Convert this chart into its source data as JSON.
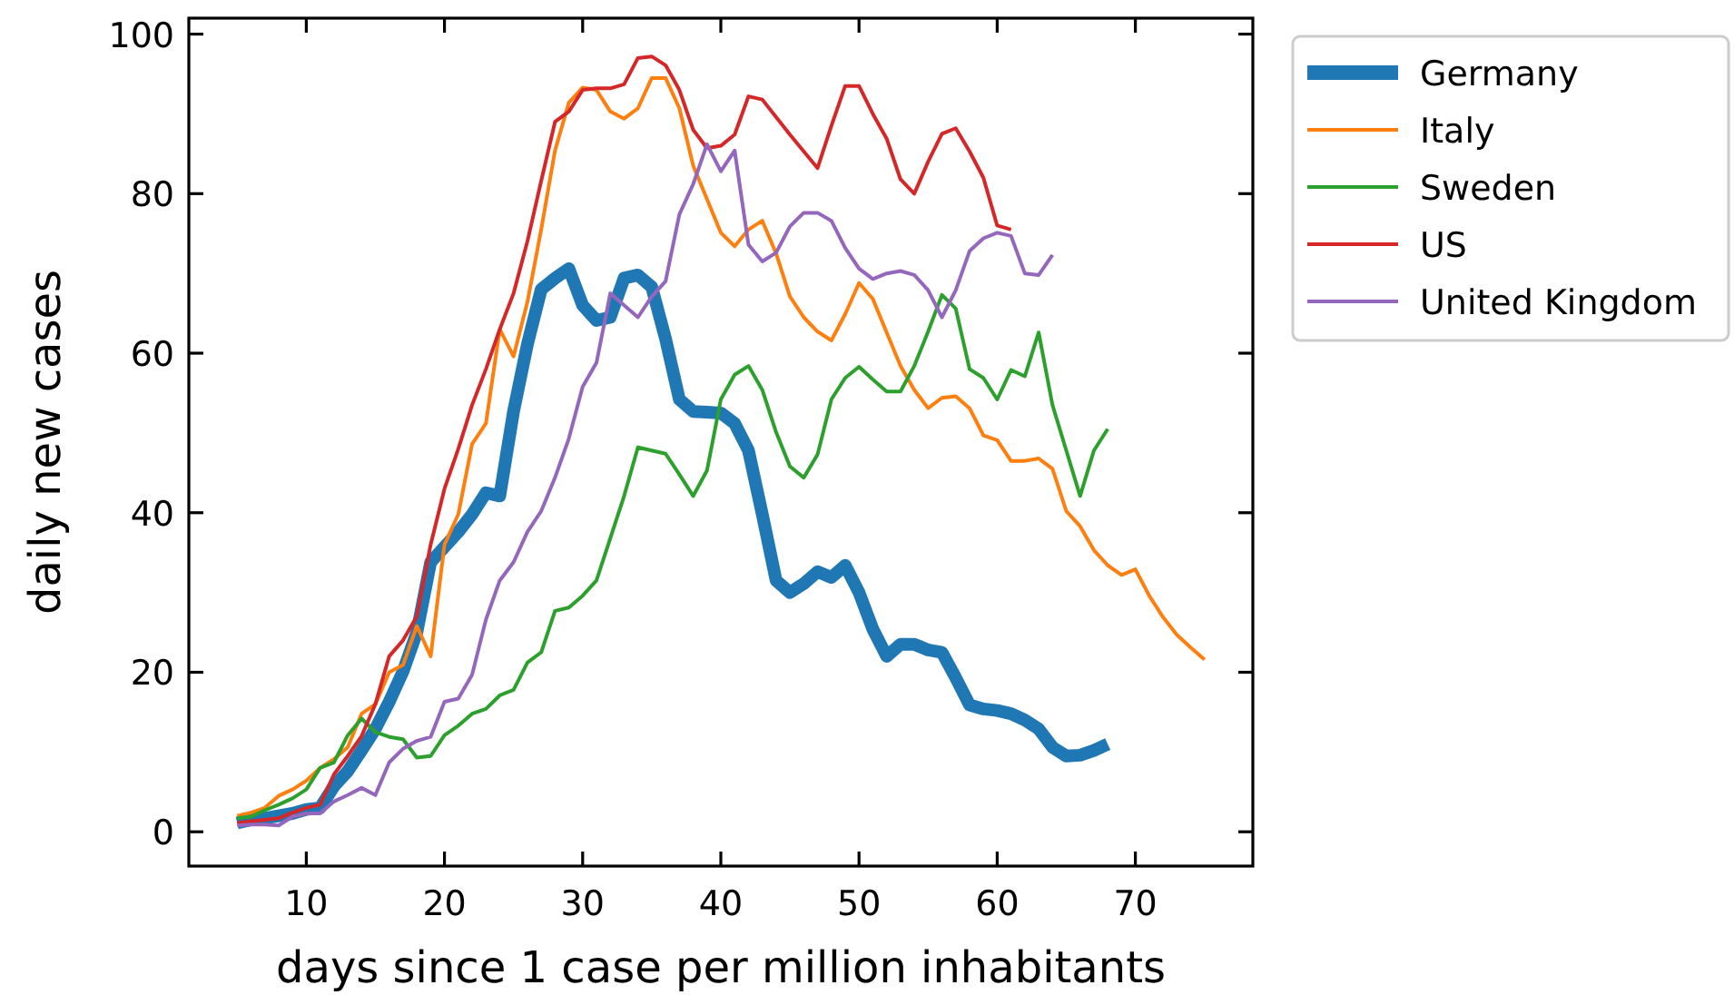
{
  "chart_data": {
    "type": "line",
    "xlabel": "days since 1 case per million inhabitants",
    "ylabel": "daily new cases",
    "xlim": [
      1.5,
      78.5
    ],
    "xticks": [
      10,
      20,
      30,
      40,
      50,
      60,
      70
    ],
    "ylim": [
      -4.3,
      102
    ],
    "yticks": [
      0,
      20,
      40,
      60,
      80,
      100
    ],
    "x": [
      5,
      6,
      7,
      8,
      9,
      10,
      11,
      12,
      13,
      14,
      15,
      16,
      17,
      18,
      19,
      20,
      21,
      22,
      23,
      24,
      25,
      26,
      27,
      28,
      29,
      30,
      31,
      32,
      33,
      34,
      35,
      36,
      37,
      38,
      39,
      40,
      41,
      42,
      43,
      44,
      45,
      46,
      47,
      48,
      49,
      50,
      51,
      52,
      53,
      54,
      55,
      56,
      57,
      58,
      59,
      60,
      61,
      62,
      63,
      64,
      65,
      66,
      67,
      68,
      69,
      70,
      71,
      72,
      73,
      74,
      75
    ],
    "legend": "right",
    "grid": false,
    "marker": "none",
    "line_style": "solid",
    "series": [
      {
        "name": "Germany",
        "color": "#1f77b4",
        "values": [
          1.1,
          1.5,
          1.7,
          2,
          2.3,
          2.8,
          3,
          5.7,
          7.6,
          10.2,
          12.9,
          16.3,
          20.1,
          25,
          33.8,
          35.7,
          37.6,
          39.8,
          42.5,
          42.1,
          52.7,
          61.1,
          68,
          69.4,
          70.6,
          66,
          64.1,
          64.5,
          69.4,
          69.8,
          68.3,
          61.8,
          54.2,
          52.7,
          52.6,
          52.5,
          51.2,
          47.8,
          39.8,
          31.5,
          30,
          31.1,
          32.6,
          31.9,
          33.4,
          30,
          25.4,
          22,
          23.5,
          23.5,
          22.8,
          22.5,
          19.3,
          15.9,
          15.4,
          15.2,
          14.8,
          14,
          12.9,
          10.6,
          9.5,
          9.6,
          10.2,
          11,
          null,
          null,
          null,
          null,
          null,
          null,
          null
        ]
      },
      {
        "name": "Italy",
        "color": "#ff7f0e",
        "values": [
          2,
          2.4,
          3,
          4.5,
          5.3,
          6.4,
          8,
          9.1,
          10.6,
          14.8,
          16,
          20,
          20.9,
          25.8,
          22,
          36,
          39.8,
          48.6,
          51.2,
          63,
          59.6,
          66.4,
          75.5,
          85.4,
          91.4,
          93.3,
          93,
          90.3,
          89.4,
          90.7,
          94.5,
          94.5,
          90.7,
          83.5,
          79.3,
          75.1,
          73.4,
          75.5,
          76.6,
          72.5,
          67.1,
          64.5,
          62.7,
          61.6,
          64.9,
          68.8,
          66.8,
          62.6,
          58.4,
          55.4,
          53.1,
          54.4,
          54.6,
          53.1,
          49.7,
          49.1,
          46.5,
          46.5,
          46.8,
          45.5,
          40.2,
          38.3,
          35.3,
          33.4,
          32.2,
          32.9,
          29.6,
          26.9,
          24.7,
          23.1,
          21.6
        ]
      },
      {
        "name": "Sweden",
        "color": "#2ca02c",
        "values": [
          1.7,
          1.9,
          2.7,
          3.4,
          4.2,
          5.3,
          8,
          8.7,
          12.1,
          14.2,
          12.5,
          11.9,
          11.6,
          9.3,
          9.5,
          12.1,
          13.3,
          14.8,
          15.4,
          17.1,
          17.8,
          21.2,
          22.5,
          27.7,
          28.1,
          29.6,
          31.5,
          36.8,
          42.1,
          48.2,
          47.8,
          47.4,
          44.8,
          42.1,
          45.3,
          54.2,
          57.3,
          58.4,
          55.4,
          50.1,
          45.8,
          44.4,
          47.3,
          54.2,
          56.9,
          58.3,
          56.7,
          55.2,
          55.2,
          58.4,
          62.7,
          67.3,
          65.6,
          58,
          56.9,
          54.2,
          57.9,
          57.1,
          62.6,
          53.5,
          47.8,
          42.1,
          47.8,
          50.5,
          null,
          null,
          null,
          null,
          null,
          null,
          null
        ]
      },
      {
        "name": "US",
        "color": "#d62728",
        "values": [
          1.1,
          1.3,
          1.5,
          1.7,
          2.4,
          3,
          3.4,
          7.2,
          9.5,
          12,
          16,
          22,
          24,
          27,
          36,
          43,
          48,
          53.5,
          58,
          63,
          67.5,
          74,
          81.6,
          89,
          90.3,
          93,
          93.2,
          93.2,
          93.7,
          97,
          97.2,
          96.1,
          93,
          88,
          85.7,
          86,
          87.4,
          92.2,
          91.8,
          89.6,
          87.4,
          85.3,
          83.2,
          88.5,
          93.5,
          93.5,
          90,
          86.9,
          81.8,
          80,
          84,
          87.5,
          88.2,
          85.3,
          82,
          76,
          75.5,
          null,
          null,
          null,
          null,
          null,
          null,
          null,
          null,
          null,
          null,
          null,
          null,
          null,
          null
        ]
      },
      {
        "name": "United Kingdom",
        "color": "#9467bd",
        "values": [
          0.8,
          0.9,
          0.9,
          0.8,
          1.9,
          2.3,
          2.3,
          3.8,
          4.6,
          5.5,
          4.6,
          8.7,
          10.4,
          11.4,
          11.9,
          16.3,
          16.7,
          19.7,
          26.6,
          31.5,
          33.8,
          37.6,
          40.2,
          44.4,
          49.3,
          55.8,
          58.8,
          67.5,
          66,
          64.5,
          67.1,
          69,
          77.4,
          81.2,
          86.2,
          82.8,
          85.4,
          73.6,
          71.5,
          72.6,
          75.9,
          77.6,
          77.6,
          76.6,
          73.2,
          70.6,
          69.3,
          70,
          70.3,
          69.8,
          67.9,
          64.5,
          67.9,
          72.8,
          74.4,
          75.1,
          74.7,
          70,
          69.8,
          72.3,
          null,
          null,
          null,
          null,
          null,
          null,
          null,
          null,
          null,
          null,
          null
        ]
      }
    ]
  }
}
